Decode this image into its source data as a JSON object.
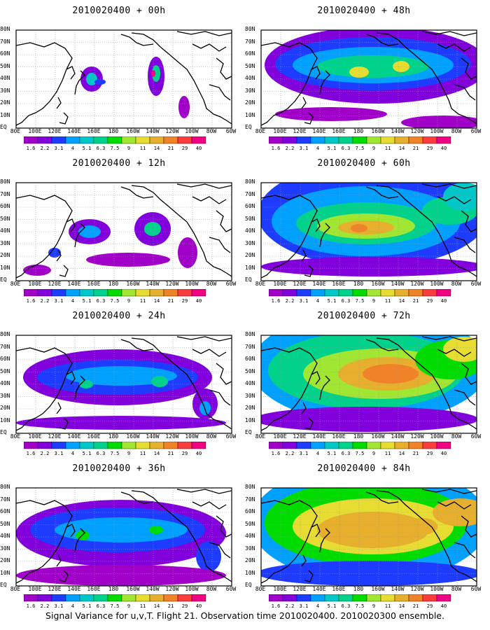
{
  "panels": [
    {
      "title": "2010020400 + 00h",
      "level": 0
    },
    {
      "title": "2010020400 + 48h",
      "level": 4
    },
    {
      "title": "2010020400 + 12h",
      "level": 1
    },
    {
      "title": "2010020400 + 60h",
      "level": 5
    },
    {
      "title": "2010020400 + 24h",
      "level": 2
    },
    {
      "title": "2010020400 + 72h",
      "level": 6
    },
    {
      "title": "2010020400 + 36h",
      "level": 3
    },
    {
      "title": "2010020400 + 84h",
      "level": 7
    }
  ],
  "lat_labels": [
    "80N",
    "70N",
    "60N",
    "50N",
    "40N",
    "30N",
    "20N",
    "10N",
    "EQ"
  ],
  "lon_labels": [
    "80E",
    "100E",
    "120E",
    "140E",
    "160E",
    "180",
    "160W",
    "140W",
    "120W",
    "100W",
    "80W",
    "60W"
  ],
  "colorbar": {
    "labels": [
      "1.6",
      "2.2",
      "3.1",
      "4",
      "5.1",
      "6.3",
      "7.5",
      "9",
      "11",
      "14",
      "21",
      "29",
      "40"
    ],
    "colors": [
      "#a000c8",
      "#8200dc",
      "#1e3cff",
      "#00a0ff",
      "#00c8c8",
      "#00d28c",
      "#00dc00",
      "#a0e632",
      "#e6dc32",
      "#e6af2d",
      "#f08228",
      "#fa3c3c",
      "#f00082"
    ]
  },
  "footer": "Signal Variance for u,v,T. Flight 21. Observation time 2010020400. 2010020300 ensemble."
}
